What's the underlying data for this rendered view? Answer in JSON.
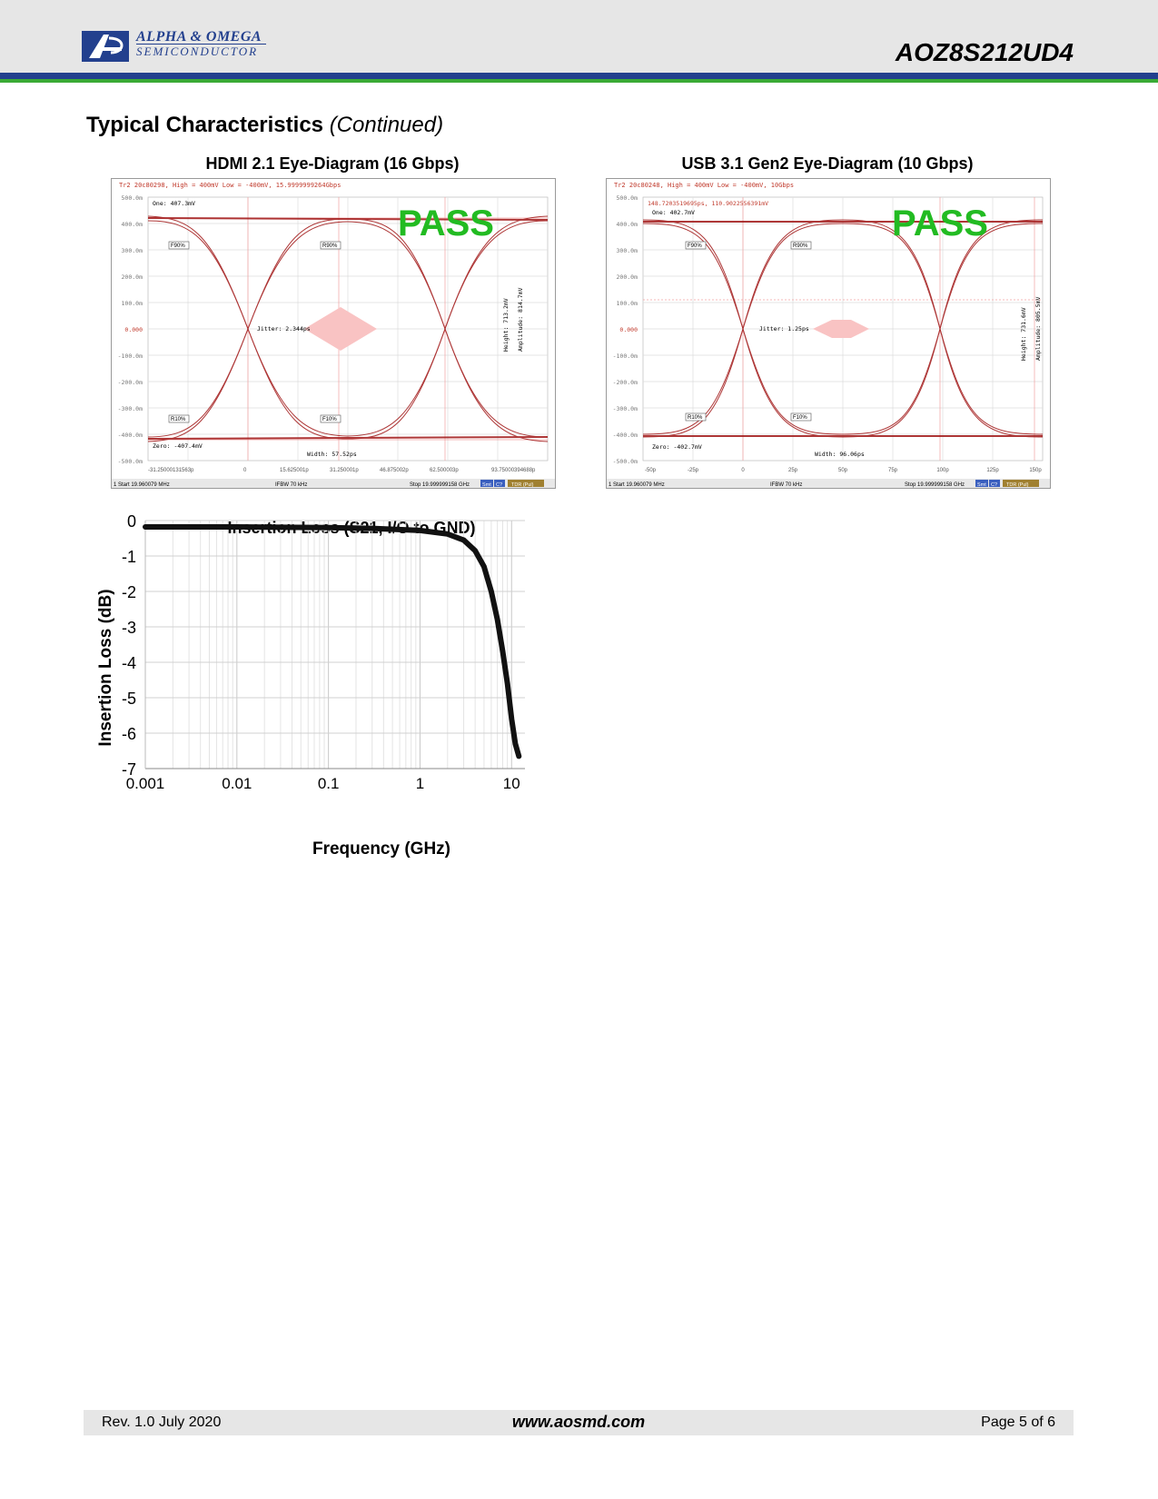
{
  "header": {
    "company_line1": "ALPHA & OMEGA",
    "company_line2": "SEMICONDUCTOR",
    "part_number": "AOZ8S212UD4"
  },
  "section": {
    "title_bold": "Typical Characteristics",
    "title_italic": "(Continued)"
  },
  "eye_hdmi": {
    "title": "HDMI 2.1 Eye-Diagram (16 Gbps)",
    "status": "Tr2 20c80298, High = 400mV Low = -400mV, 15.9999999264Gbps",
    "pass": "PASS",
    "y_ticks": [
      "500.0m",
      "400.0m",
      "300.0m",
      "200.0m",
      "100.0m",
      "0.000",
      "-100.0m",
      "-200.0m",
      "-300.0m",
      "-400.0m",
      "-500.0m"
    ],
    "x_ticks": [
      "-31.25000131563p",
      "0",
      "15.625001p",
      "31.250001p",
      "46.875002p",
      "62.500003p",
      "93.75000394688p"
    ],
    "one": "One: 407.3mV",
    "zero": "Zero: -407.4mV",
    "jitter": "Jitter: 2.344ps",
    "width": "Width: 57.52ps",
    "height": "Height: 713.2mV",
    "amplitude": "Amplitude: 814.7mV",
    "markers": [
      "F90%",
      "R90%",
      "R10%",
      "F10%"
    ],
    "bottom_start": "1  Start 19.960079 MHz",
    "bottom_ifbw": "IFBW 70 kHz",
    "bottom_stop": "Stop 19.999999158 GHz",
    "bottom_tags": [
      "Smt",
      "C?",
      "TDR (Pul)"
    ]
  },
  "eye_usb": {
    "title": "USB 3.1 Gen2 Eye-Diagram (10 Gbps)",
    "status": "Tr2 20c80248, High = 400mV Low = -400mV, 10Gbps",
    "readout": "148.7203519695ps, 110.9022556391mV",
    "pass": "PASS",
    "y_ticks": [
      "500.0m",
      "400.0m",
      "300.0m",
      "200.0m",
      "100.0m",
      "0.000",
      "-100.0m",
      "-200.0m",
      "-300.0m",
      "-400.0m",
      "-500.0m"
    ],
    "x_ticks": [
      "-50p",
      "-25p",
      "0",
      "25p",
      "50p",
      "75p",
      "100p",
      "125p",
      "150p"
    ],
    "one": "One: 402.7mV",
    "zero": "Zero: -402.7mV",
    "jitter": "Jitter: 1.25ps",
    "width": "Width: 96.06ps",
    "height": "Height: 731.6mV",
    "amplitude": "Amplitude: 805.5mV",
    "markers": [
      "F90%",
      "R90%",
      "R10%",
      "F10%"
    ],
    "bottom_start": "1  Start 19.960079 MHz",
    "bottom_ifbw": "IFBW 70 kHz",
    "bottom_stop": "Stop 19.999999158 GHz",
    "bottom_tags": [
      "Smt",
      "C?",
      "TDR (Pul)"
    ]
  },
  "chart_data": {
    "type": "line",
    "title": "Insertion Loss (S21, I/O to GND)",
    "xlabel": "Frequency (GHz)",
    "ylabel": "Insertion Loss (dB)",
    "xscale": "log",
    "xlim": [
      0.001,
      14
    ],
    "ylim": [
      -7,
      0
    ],
    "x_ticks": [
      "0.001",
      "0.01",
      "0.1",
      "1",
      "10"
    ],
    "y_ticks": [
      "0",
      "-1",
      "-2",
      "-3",
      "-4",
      "-5",
      "-6",
      "-7"
    ],
    "grid": true,
    "line_color": "#111111",
    "series": [
      {
        "x": [
          0.001,
          0.01,
          0.1,
          0.3,
          1,
          2,
          3,
          4,
          5,
          6,
          7,
          8,
          9,
          10,
          11,
          12
        ],
        "y": [
          -0.18,
          -0.18,
          -0.2,
          -0.22,
          -0.28,
          -0.38,
          -0.55,
          -0.85,
          -1.3,
          -2.0,
          -2.8,
          -3.7,
          -4.6,
          -5.6,
          -6.3,
          -6.65
        ]
      }
    ]
  },
  "footer": {
    "revision": "Rev. 1.0 July 2020",
    "website": "www.aosmd.com",
    "page": "Page 5 of 6"
  }
}
